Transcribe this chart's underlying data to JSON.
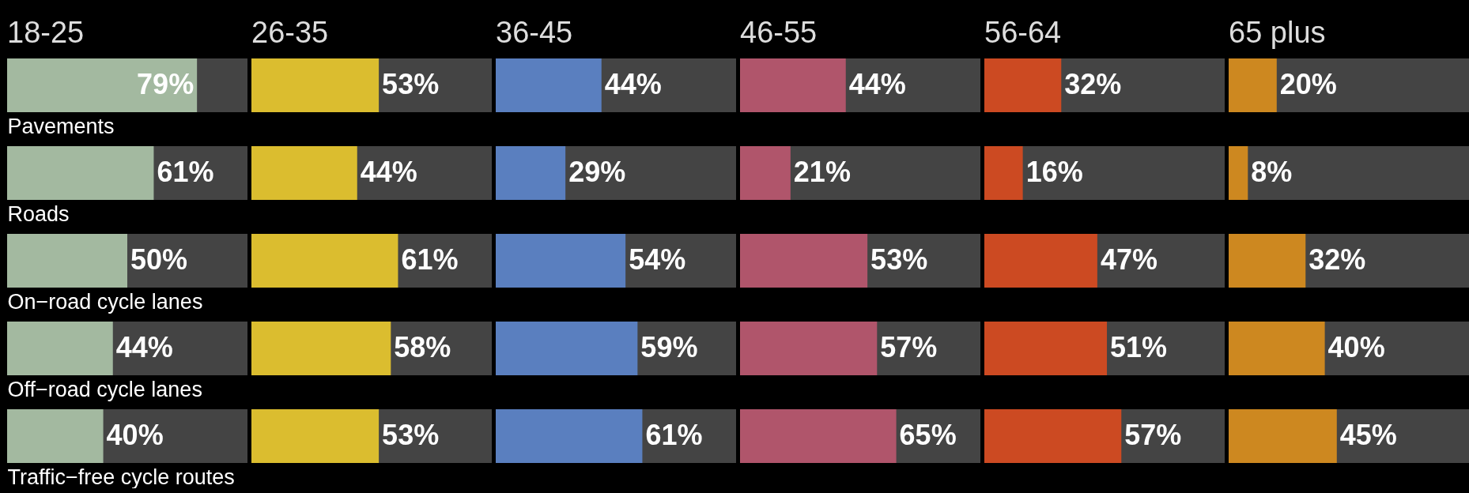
{
  "chart_data": [
    {
      "type": "bar",
      "orientation": "horizontal",
      "title": "18-25",
      "categories": [
        "Pavements",
        "Roads",
        "On−road cycle lanes",
        "Off−road cycle lanes",
        "Traffic−free cycle routes"
      ],
      "values": [
        79,
        61,
        50,
        44,
        40
      ],
      "value_labels": [
        "79%",
        "61%",
        "50%",
        "44%",
        "40%"
      ],
      "color": "#a3b9a0",
      "xlim": [
        0,
        100
      ],
      "tick_labels": "y"
    },
    {
      "type": "bar",
      "orientation": "horizontal",
      "title": "26-35",
      "categories": [
        null,
        null,
        null,
        null,
        null
      ],
      "values": [
        53,
        44,
        61,
        58,
        53
      ],
      "value_labels": [
        "53%",
        "44%",
        "61%",
        "58%",
        "53%"
      ],
      "color": "#dbbd2f",
      "xlim": [
        0,
        100
      ],
      "tick_labels": false
    },
    {
      "type": "bar",
      "orientation": "horizontal",
      "title": "36-45",
      "categories": [
        null,
        null,
        null,
        null,
        null
      ],
      "values": [
        44,
        29,
        54,
        59,
        61
      ],
      "value_labels": [
        "44%",
        "29%",
        "54%",
        "59%",
        "61%"
      ],
      "color": "#5a7fbf",
      "xlim": [
        0,
        100
      ],
      "tick_labels": false
    },
    {
      "type": "bar",
      "orientation": "horizontal",
      "title": "46-55",
      "categories": [
        null,
        null,
        null,
        null,
        null
      ],
      "values": [
        44,
        21,
        53,
        57,
        65
      ],
      "value_labels": [
        "44%",
        "21%",
        "53%",
        "57%",
        "65%"
      ],
      "color": "#b0556b",
      "xlim": [
        0,
        100
      ],
      "tick_labels": false
    },
    {
      "type": "bar",
      "orientation": "horizontal",
      "title": "56-64",
      "categories": [
        null,
        null,
        null,
        null,
        null
      ],
      "values": [
        32,
        16,
        47,
        51,
        57
      ],
      "value_labels": [
        "32%",
        "16%",
        "47%",
        "51%",
        "57%"
      ],
      "color": "#cc4a22",
      "xlim": [
        0,
        100
      ],
      "tick_labels": false
    },
    {
      "type": "bar",
      "orientation": "horizontal",
      "title": "65 plus",
      "categories": [
        null,
        null,
        null,
        null,
        null
      ],
      "values": [
        20,
        8,
        32,
        40,
        45
      ],
      "value_labels": [
        "20%",
        "8%",
        "32%",
        "40%",
        "45%"
      ],
      "color": "#cd8820",
      "xlim": [
        0,
        100
      ],
      "tick_labels": false
    }
  ]
}
